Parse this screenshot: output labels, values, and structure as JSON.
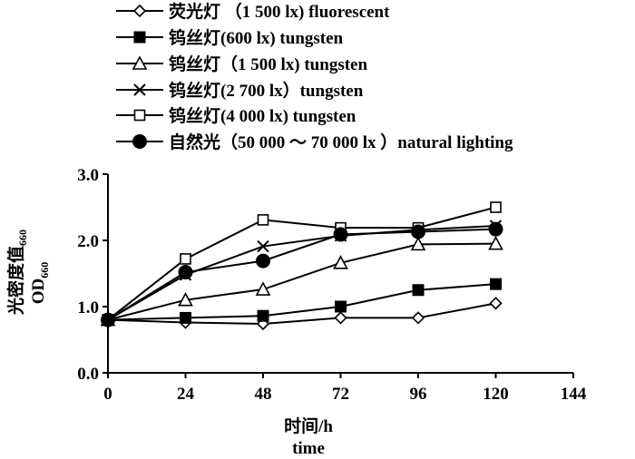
{
  "chart_data": {
    "type": "line",
    "x": [
      0,
      24,
      48,
      72,
      96,
      120
    ],
    "xlim": [
      0,
      144
    ],
    "ylim": [
      0,
      3.0
    ],
    "xticks": [
      "0",
      "24",
      "48",
      "72",
      "96",
      "120",
      "144"
    ],
    "yticks": [
      "0.0",
      "1.0",
      "2.0",
      "3.0"
    ],
    "xlabel": "时间/h",
    "xlabel_en": "time",
    "ylabel": "光密度值",
    "ylabel_sub": "660",
    "ylabel_en": "OD",
    "ylabel_en_sub": "660",
    "grid": false,
    "legend_position": "top",
    "series": [
      {
        "name": "荧光灯 （1 500 lx) fluorescent",
        "marker": "diamond-open",
        "values": [
          0.8,
          0.76,
          0.74,
          0.83,
          0.83,
          1.05
        ]
      },
      {
        "name": "钨丝灯(600 lx)  tungsten",
        "marker": "square-filled",
        "values": [
          0.8,
          0.83,
          0.86,
          1.0,
          1.25,
          1.34
        ]
      },
      {
        "name": "钨丝灯（1 500 lx)  tungsten",
        "marker": "triangle-open",
        "values": [
          0.8,
          1.1,
          1.26,
          1.66,
          1.94,
          1.95
        ]
      },
      {
        "name": "钨丝灯(2 700 lx）tungsten",
        "marker": "x",
        "values": [
          0.8,
          1.48,
          1.91,
          2.07,
          2.16,
          2.22
        ]
      },
      {
        "name": "钨丝灯(4 000 lx)  tungsten",
        "marker": "square-open",
        "values": [
          0.8,
          1.72,
          2.31,
          2.19,
          2.19,
          2.5
        ]
      },
      {
        "name": "自然光（50 000 ～ 70 000 lx ）natural lighting",
        "marker": "circle-filled",
        "values": [
          0.8,
          1.52,
          1.69,
          2.09,
          2.13,
          2.17
        ]
      }
    ]
  }
}
